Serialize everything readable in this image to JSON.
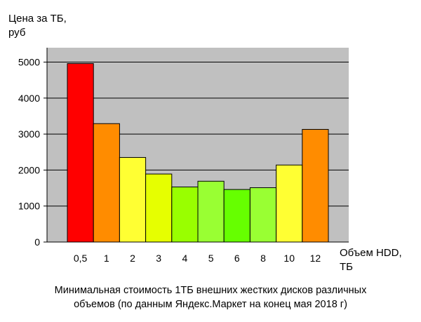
{
  "chart_data": {
    "type": "bar",
    "ylabel_lines": [
      "Цена за ТБ,",
      "руб"
    ],
    "xlabel_lines": [
      "Объем HDD,",
      "ТБ"
    ],
    "caption_lines": [
      "Минимальная стоимость 1ТБ внешних жестких дисков различных",
      "объемов (по данным Яндекс.Маркет на конец мая 2018 г)"
    ],
    "categories": [
      "0,5",
      "1",
      "2",
      "3",
      "4",
      "5",
      "6",
      "8",
      "10",
      "12"
    ],
    "values": [
      4960,
      3290,
      2350,
      1890,
      1530,
      1690,
      1460,
      1510,
      2140,
      3130
    ],
    "bar_colors": [
      "#ff0000",
      "#ff8c00",
      "#ffff33",
      "#e6ff00",
      "#99ff00",
      "#99ff33",
      "#66ff00",
      "#99ff33",
      "#ffff33",
      "#ff8c00"
    ],
    "ylim": [
      0,
      5400
    ],
    "yticks": [
      0,
      1000,
      2000,
      3000,
      4000,
      5000
    ],
    "grid": true,
    "plot_background": "#c0c0c0"
  }
}
